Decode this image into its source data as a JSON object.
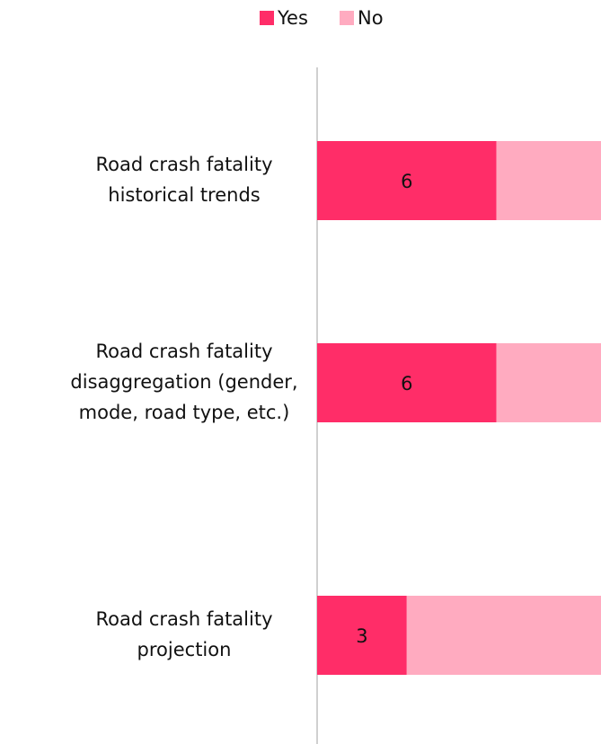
{
  "chart_data": {
    "type": "stacked_barh",
    "categories": [
      [
        "Road crash fatality",
        "historical trends"
      ],
      [
        "Road crash fatality",
        "disaggregation (gender,",
        "mode, road type, etc.)"
      ],
      [
        "Road crash fatality",
        "projection"
      ]
    ],
    "series": [
      {
        "name": "Yes",
        "color": "#ff2d68",
        "values": [
          6,
          6,
          3
        ]
      },
      {
        "name": "No",
        "color": "#ffabc0",
        "values": [
          3.5,
          3.5,
          6.5
        ]
      }
    ],
    "xlim": [
      0,
      9.5
    ],
    "legend": "top"
  }
}
